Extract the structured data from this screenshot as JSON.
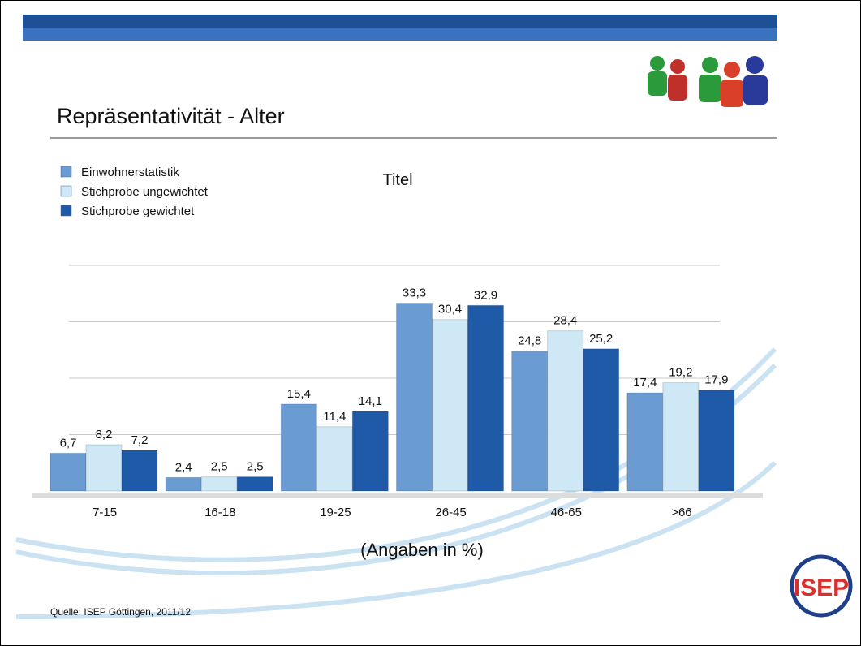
{
  "slide": {
    "title": "Repräsentativität - Alter",
    "source": "Quelle: ISEP Göttingen, 2011/12",
    "logo": "ISEP"
  },
  "chart_data": {
    "type": "bar",
    "title": "Titel",
    "xlabel": "(Angaben in %)",
    "categories": [
      "7-15",
      "16-18",
      "19-25",
      "26-45",
      "46-65",
      ">66"
    ],
    "series": [
      {
        "name": "Einwohnerstatistik",
        "color": "#6a9bd3",
        "values": [
          6.7,
          2.4,
          15.4,
          33.3,
          24.8,
          17.4
        ],
        "value_labels": [
          "6,7",
          "2,4",
          "15,4",
          "33,3",
          "24,8",
          "17,4"
        ]
      },
      {
        "name": "Stichprobe ungewichtet",
        "color": "#cfe8f5",
        "values": [
          8.2,
          2.5,
          11.4,
          30.4,
          28.4,
          19.2
        ],
        "value_labels": [
          "8,2",
          "2,5",
          "11,4",
          "30,4",
          "28,4",
          "19,2"
        ]
      },
      {
        "name": "Stichprobe gewichtet",
        "color": "#1f5aa8",
        "values": [
          7.2,
          2.5,
          14.1,
          32.9,
          25.2,
          17.9
        ],
        "value_labels": [
          "7,2",
          "2,5",
          "14,1",
          "32,9",
          "25,2",
          "17,9"
        ]
      }
    ],
    "ylim": [
      0,
      40
    ],
    "yticks": [
      10,
      20,
      30,
      40
    ],
    "grid": true,
    "legend": "top-left"
  }
}
